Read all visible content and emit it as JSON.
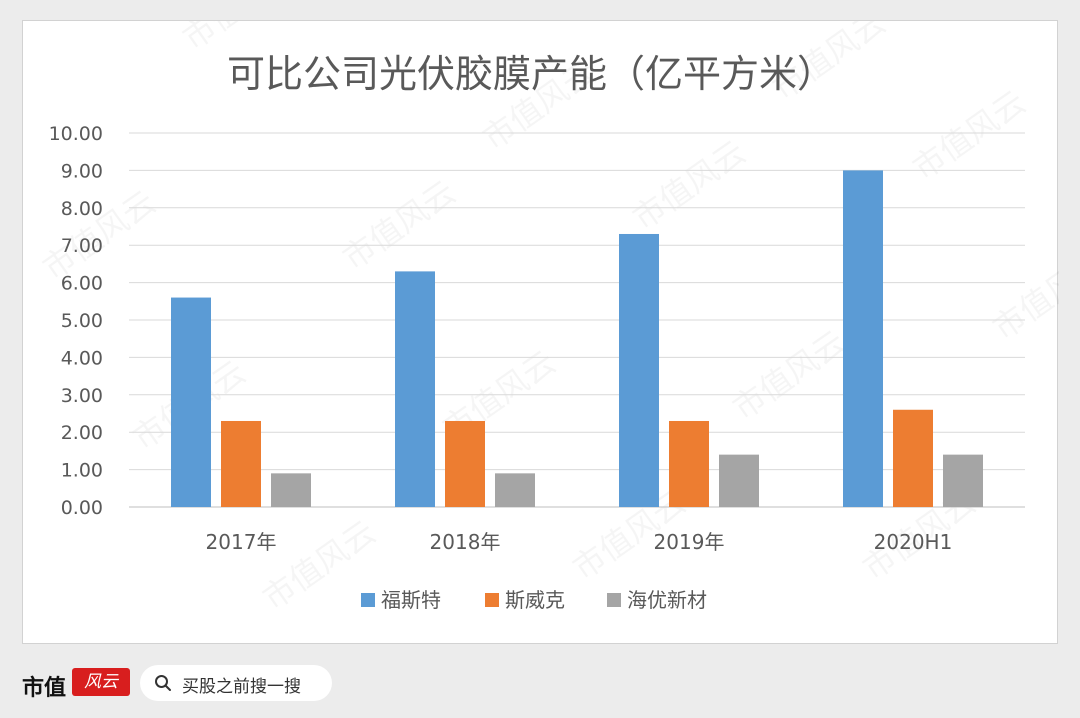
{
  "chart_data": {
    "type": "bar",
    "title": "可比公司光伏胶膜产能（亿平方米）",
    "categories": [
      "2017年",
      "2018年",
      "2019年",
      "2020H1"
    ],
    "series": [
      {
        "name": "福斯特",
        "values": [
          5.6,
          6.3,
          7.3,
          9.0
        ],
        "color": "#5b9bd5"
      },
      {
        "name": "斯威克",
        "values": [
          2.3,
          2.3,
          2.3,
          2.6
        ],
        "color": "#ed7d31"
      },
      {
        "name": "海优新材",
        "values": [
          0.9,
          0.9,
          1.4,
          1.4
        ],
        "color": "#a5a5a5"
      }
    ],
    "ylim": [
      0,
      10
    ],
    "yticks": [
      "0.00",
      "1.00",
      "2.00",
      "3.00",
      "4.00",
      "5.00",
      "6.00",
      "7.00",
      "8.00",
      "9.00",
      "10.00"
    ],
    "grid": true,
    "legend_position": "bottom"
  },
  "footer": {
    "brand": "市值",
    "brand_logo_text": "风云",
    "search_placeholder": "买股之前搜一搜"
  },
  "watermark_text": "市值风云"
}
